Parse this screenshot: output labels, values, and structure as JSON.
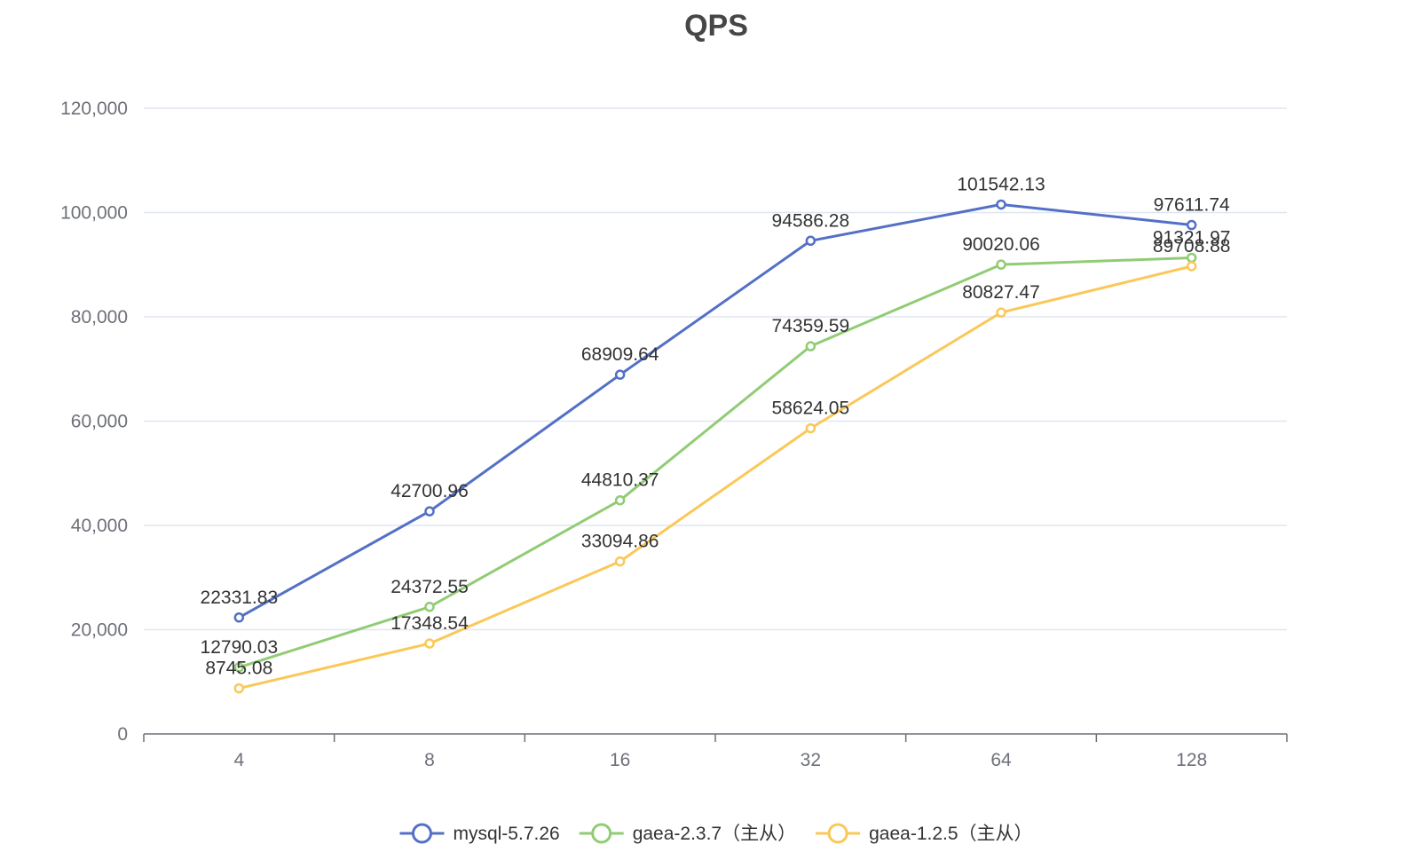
{
  "chart_data": {
    "type": "line",
    "title": "QPS",
    "xlabel": "",
    "ylabel": "",
    "categories": [
      "4",
      "8",
      "16",
      "32",
      "64",
      "128"
    ],
    "ylim": [
      0,
      120000
    ],
    "y_ticks": [
      0,
      20000,
      40000,
      60000,
      80000,
      100000,
      120000
    ],
    "y_tick_labels": [
      "0",
      "20,000",
      "40,000",
      "60,000",
      "80,000",
      "100,000",
      "120,000"
    ],
    "grid": true,
    "legend_position": "bottom",
    "series": [
      {
        "name": "mysql-5.7.26",
        "color": "#5470c6",
        "values": [
          22331.83,
          42700.96,
          68909.64,
          94586.28,
          101542.13,
          97611.74
        ],
        "labels": [
          "22331.83",
          "42700.96",
          "68909.64",
          "94586.28",
          "101542.13",
          "97611.74"
        ]
      },
      {
        "name": "gaea-2.3.7（主从）",
        "color": "#91cc75",
        "values": [
          12790.03,
          24372.55,
          44810.37,
          74359.59,
          90020.06,
          91321.97
        ],
        "labels": [
          "12790.03",
          "24372.55",
          "44810.37",
          "74359.59",
          "90020.06",
          "91321.97"
        ]
      },
      {
        "name": "gaea-1.2.5（主从）",
        "color": "#fac858",
        "values": [
          8745.08,
          17348.54,
          33094.86,
          58624.05,
          80827.47,
          89708.88
        ],
        "labels": [
          "8745.08",
          "17348.54",
          "33094.86",
          "58624.05",
          "80827.47",
          "89708.88"
        ]
      }
    ]
  }
}
